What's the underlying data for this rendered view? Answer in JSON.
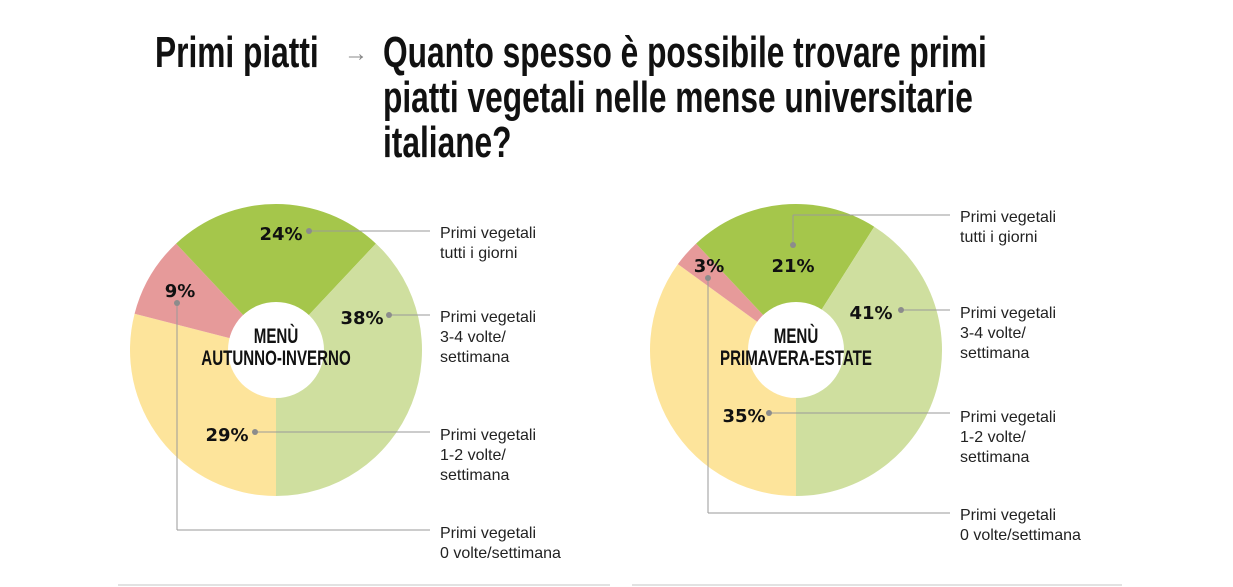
{
  "header": {
    "section": "Primi piatti",
    "arrow": "→",
    "question": "Quanto spesso è possibile trovare primi piatti vegetali nelle mense universitarie italiane?"
  },
  "colors": {
    "tutti": "#a5c64b",
    "tre_quattro": "#cfdf9f",
    "uno_due": "#fde49b",
    "zero": "#e69a9a",
    "leader": "#8c8c8c"
  },
  "chart_data": [
    {
      "type": "pie",
      "title": "MENÙ AUTUNNO-INVERNO",
      "title_lines": [
        "MENÙ",
        "AUTUNNO-INVERNO"
      ],
      "categories": [
        "Primi vegetali 1-2 volte/settimana",
        "Primi vegetali 0 volte/settimana",
        "Primi vegetali tutti i giorni",
        "Primi vegetali 3-4 volte/settimana"
      ],
      "values": [
        29,
        9,
        24,
        38
      ],
      "value_labels": [
        "29%",
        "9%",
        "24%",
        "38%"
      ],
      "legend": [
        [
          "Primi vegetali",
          "1-2 volte/",
          "settimana"
        ],
        [
          "Primi vegetali",
          "0 volte/settimana"
        ],
        [
          "Primi vegetali",
          "tutti i giorni"
        ],
        [
          "Primi vegetali",
          "3-4 volte/",
          "settimana"
        ]
      ]
    },
    {
      "type": "pie",
      "title": "MENÙ PRIMAVERA-ESTATE",
      "title_lines": [
        "MENÙ",
        "PRIMAVERA-ESTATE"
      ],
      "categories": [
        "Primi vegetali 1-2 volte/settimana",
        "Primi vegetali 0 volte/settimana",
        "Primi vegetali tutti i giorni",
        "Primi vegetali 3-4 volte/settimana"
      ],
      "values": [
        35,
        3,
        21,
        41
      ],
      "value_labels": [
        "35%",
        "3%",
        "21%",
        "41%"
      ],
      "legend": [
        [
          "Primi vegetali",
          "1-2 volte/",
          "settimana"
        ],
        [
          "Primi vegetali",
          "0 volte/settimana"
        ],
        [
          "Primi vegetali",
          "tutti i giorni"
        ],
        [
          "Primi vegetali",
          "3-4 volte/",
          "settimana"
        ]
      ]
    }
  ]
}
